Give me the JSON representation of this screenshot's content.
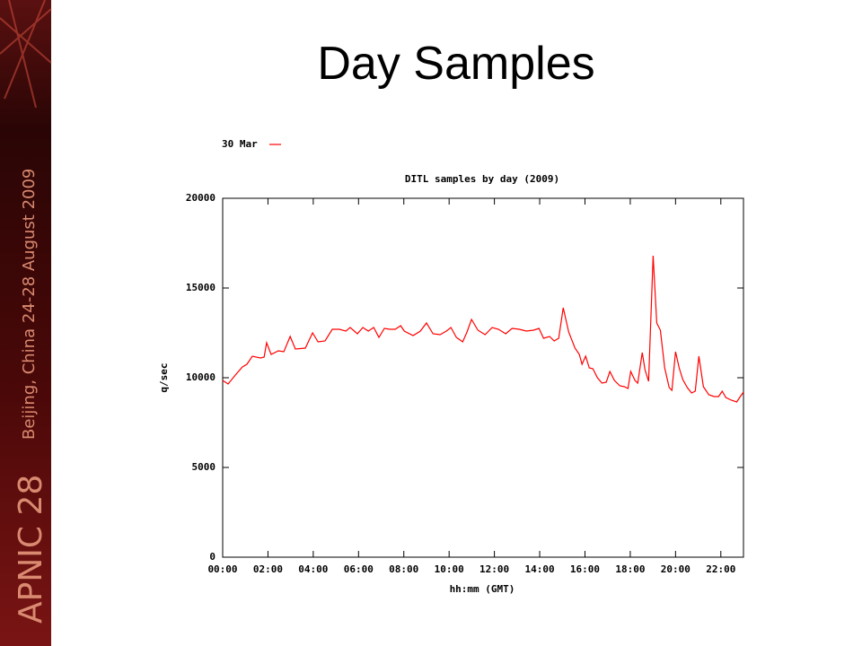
{
  "slide": {
    "title": "Day Samples",
    "sidebar": [
      "APNIC 28",
      "Beijing, China  24-28 August 2009"
    ]
  },
  "chart_data": {
    "type": "line",
    "title": "DITL samples by day (2009)",
    "xlabel": "hh:mm (GMT)",
    "ylabel": "q/sec",
    "legend": "top-left",
    "xlim": [
      0,
      23
    ],
    "ylim": [
      0,
      20000
    ],
    "xticks": [
      {
        "value": 0,
        "label": "00:00"
      },
      {
        "value": 2,
        "label": "02:00"
      },
      {
        "value": 4,
        "label": "04:00"
      },
      {
        "value": 6,
        "label": "06:00"
      },
      {
        "value": 8,
        "label": "08:00"
      },
      {
        "value": 10,
        "label": "10:00"
      },
      {
        "value": 12,
        "label": "12:00"
      },
      {
        "value": 14,
        "label": "14:00"
      },
      {
        "value": 16,
        "label": "16:00"
      },
      {
        "value": 18,
        "label": "18:00"
      },
      {
        "value": 20,
        "label": "20:00"
      },
      {
        "value": 22,
        "label": "22:00"
      }
    ],
    "yticks": [
      0,
      5000,
      10000,
      15000,
      20000
    ],
    "x": [
      0,
      0.24,
      0.56,
      0.87,
      1.07,
      1.31,
      1.67,
      1.83,
      1.94,
      2.14,
      2.46,
      2.7,
      2.98,
      3.21,
      3.65,
      3.97,
      4.21,
      4.52,
      4.84,
      5.16,
      5.44,
      5.63,
      5.95,
      6.19,
      6.43,
      6.67,
      6.9,
      7.14,
      7.38,
      7.62,
      7.86,
      8.02,
      8.41,
      8.73,
      9.0,
      9.29,
      9.6,
      9.88,
      10.08,
      10.32,
      10.6,
      10.79,
      10.99,
      11.27,
      11.59,
      11.9,
      12.18,
      12.5,
      12.78,
      13.1,
      13.41,
      13.73,
      13.97,
      14.17,
      14.44,
      14.64,
      14.84,
      15.04,
      15.28,
      15.56,
      15.75,
      15.87,
      16.03,
      16.19,
      16.35,
      16.55,
      16.75,
      16.94,
      17.1,
      17.3,
      17.54,
      17.74,
      17.9,
      18.02,
      18.21,
      18.33,
      18.53,
      18.65,
      18.81,
      19.01,
      19.17,
      19.33,
      19.52,
      19.72,
      19.84,
      20.0,
      20.16,
      20.32,
      20.52,
      20.71,
      20.87,
      21.03,
      21.23,
      21.47,
      21.71,
      21.9,
      22.06,
      22.22,
      22.46,
      22.7,
      22.86,
      23.0
    ],
    "series": [
      {
        "name": "30 Mar",
        "color": "#ff0000",
        "values": [
          9850,
          9650,
          10150,
          10600,
          10750,
          11200,
          11100,
          11150,
          11950,
          11300,
          11500,
          11450,
          12300,
          11600,
          11650,
          12500,
          12000,
          12050,
          12700,
          12700,
          12600,
          12800,
          12450,
          12800,
          12600,
          12800,
          12250,
          12750,
          12700,
          12700,
          12900,
          12600,
          12350,
          12600,
          13050,
          12450,
          12400,
          12600,
          12800,
          12250,
          12000,
          12550,
          13250,
          12650,
          12400,
          12800,
          12700,
          12450,
          12750,
          12700,
          12600,
          12650,
          12750,
          12200,
          12300,
          12050,
          12200,
          13900,
          12550,
          11650,
          11300,
          10750,
          11200,
          10550,
          10500,
          10000,
          9700,
          9750,
          10350,
          9850,
          9550,
          9500,
          9400,
          10350,
          9850,
          9700,
          11400,
          10450,
          9800,
          16800,
          13050,
          12650,
          10550,
          9450,
          9300,
          11450,
          10550,
          9900,
          9450,
          9150,
          9250,
          11200,
          9500,
          9050,
          8950,
          8950,
          9250,
          8900,
          8750,
          8650,
          8950,
          9200
        ]
      }
    ]
  }
}
